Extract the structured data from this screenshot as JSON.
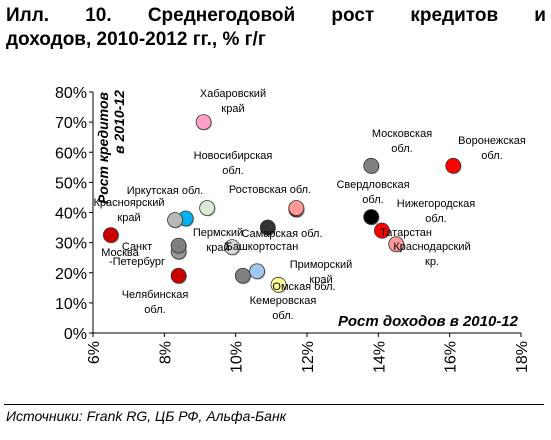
{
  "title": {
    "line1_words": [
      "Илл.",
      "10.",
      "Среднегодовой",
      "рост",
      "кредитов",
      "и"
    ],
    "line2": "доходов, 2010-2012 гг., % г/г"
  },
  "source": "Источники: Frank RG, ЦБ РФ, Альфа-Банк",
  "chart_data": {
    "type": "scatter",
    "xlabel": "Рост доходов в 2010-12",
    "ylabel": "Рост кредитов в 2010-12",
    "xlim": [
      6,
      18
    ],
    "ylim": [
      0,
      80
    ],
    "x_ticks": [
      "6%",
      "8%",
      "10%",
      "12%",
      "14%",
      "16%",
      "18%"
    ],
    "y_ticks": [
      "0%",
      "10%",
      "20%",
      "30%",
      "40%",
      "50%",
      "60%",
      "70%",
      "80%"
    ],
    "grid": false,
    "points": [
      {
        "name": "Москва",
        "x": 6.5,
        "y": 32.5,
        "color": "#cc0000"
      },
      {
        "name": "Санкт-Петербург",
        "x": 8.4,
        "y": 27.0,
        "color": "#999999"
      },
      {
        "name": "Челябинская обл.",
        "x": 8.4,
        "y": 19.0,
        "color": "#cc0000"
      },
      {
        "name": "Иркутская обл.",
        "x": 8.6,
        "y": 38.0,
        "color": "#00b0f0"
      },
      {
        "name": "Красноярский край",
        "x": 8.3,
        "y": 37.5,
        "color": "#b8b8b8"
      },
      {
        "name": "Пермский край",
        "x": 8.4,
        "y": 29.0,
        "color": "#808080"
      },
      {
        "name": "Хабаровский край",
        "x": 9.1,
        "y": 70.0,
        "color": "#ffa0c8"
      },
      {
        "name": "Новосибирская обл.",
        "x": 9.2,
        "y": 41.5,
        "color": "#d9ead3"
      },
      {
        "name": "Башкортостан",
        "x": 9.9,
        "y": 28.5,
        "color": "#d9d9d9"
      },
      {
        "name": "Кемеровская обл.",
        "x": 10.2,
        "y": 19.0,
        "color": "#808080"
      },
      {
        "name": "Приморский край",
        "x": 10.6,
        "y": 20.5,
        "color": "#a0c8f0"
      },
      {
        "name": "Омская обл.",
        "x": 11.2,
        "y": 16.0,
        "color": "#ffff99"
      },
      {
        "name": "Самарская обл.",
        "x": 10.9,
        "y": 35.0,
        "color": "#333333"
      },
      {
        "name": "Ростовская обл.",
        "x": 11.7,
        "y": 41.0,
        "color": "#cc0000"
      },
      {
        "name": "Свердловская обл.",
        "x": 11.7,
        "y": 41.5,
        "color": "#ff9999"
      },
      {
        "name": "Московская обл.",
        "x": 13.8,
        "y": 55.5,
        "color": "#808080"
      },
      {
        "name": "Нижегородская обл.",
        "x": 13.8,
        "y": 38.5,
        "color": "#000000"
      },
      {
        "name": "Татарстан",
        "x": 14.1,
        "y": 34.0,
        "color": "#ff0000"
      },
      {
        "name": "Краснодарский кр.",
        "x": 14.5,
        "y": 29.5,
        "color": "#ff9999"
      },
      {
        "name": "Воронежская обл.",
        "x": 16.1,
        "y": 55.5,
        "color": "#ff0000"
      }
    ]
  },
  "labels": [
    {
      "lines": [
        "Хабаровский",
        "край"
      ]
    },
    {
      "lines": [
        "Московская",
        "обл."
      ]
    },
    {
      "lines": [
        "Воронежская",
        "обл."
      ]
    },
    {
      "lines": [
        "Новосибирская",
        "обл."
      ]
    },
    {
      "lines": [
        "Ростовская обл."
      ]
    },
    {
      "lines": [
        "Свердловская",
        "обл."
      ]
    },
    {
      "lines": [
        "Иркутская обл."
      ]
    },
    {
      "lines": [
        "Красноярский",
        "край"
      ]
    },
    {
      "lines": [
        "Нижегородская",
        "обл."
      ]
    },
    {
      "lines": [
        "Пермский",
        "край"
      ]
    },
    {
      "lines": [
        "Самарская обл."
      ]
    },
    {
      "lines": [
        "Татарстан"
      ]
    },
    {
      "lines": [
        "Краснодарский",
        "кр."
      ]
    },
    {
      "lines": [
        "Москва"
      ]
    },
    {
      "lines": [
        "Санкт",
        "-Петербург"
      ]
    },
    {
      "lines": [
        "Башкортостан"
      ]
    },
    {
      "lines": [
        "Приморский",
        "край"
      ]
    },
    {
      "lines": [
        "Омская обл."
      ]
    },
    {
      "lines": [
        "Кемеровская",
        "обл."
      ]
    },
    {
      "lines": [
        "Челябинская",
        "обл."
      ]
    }
  ]
}
